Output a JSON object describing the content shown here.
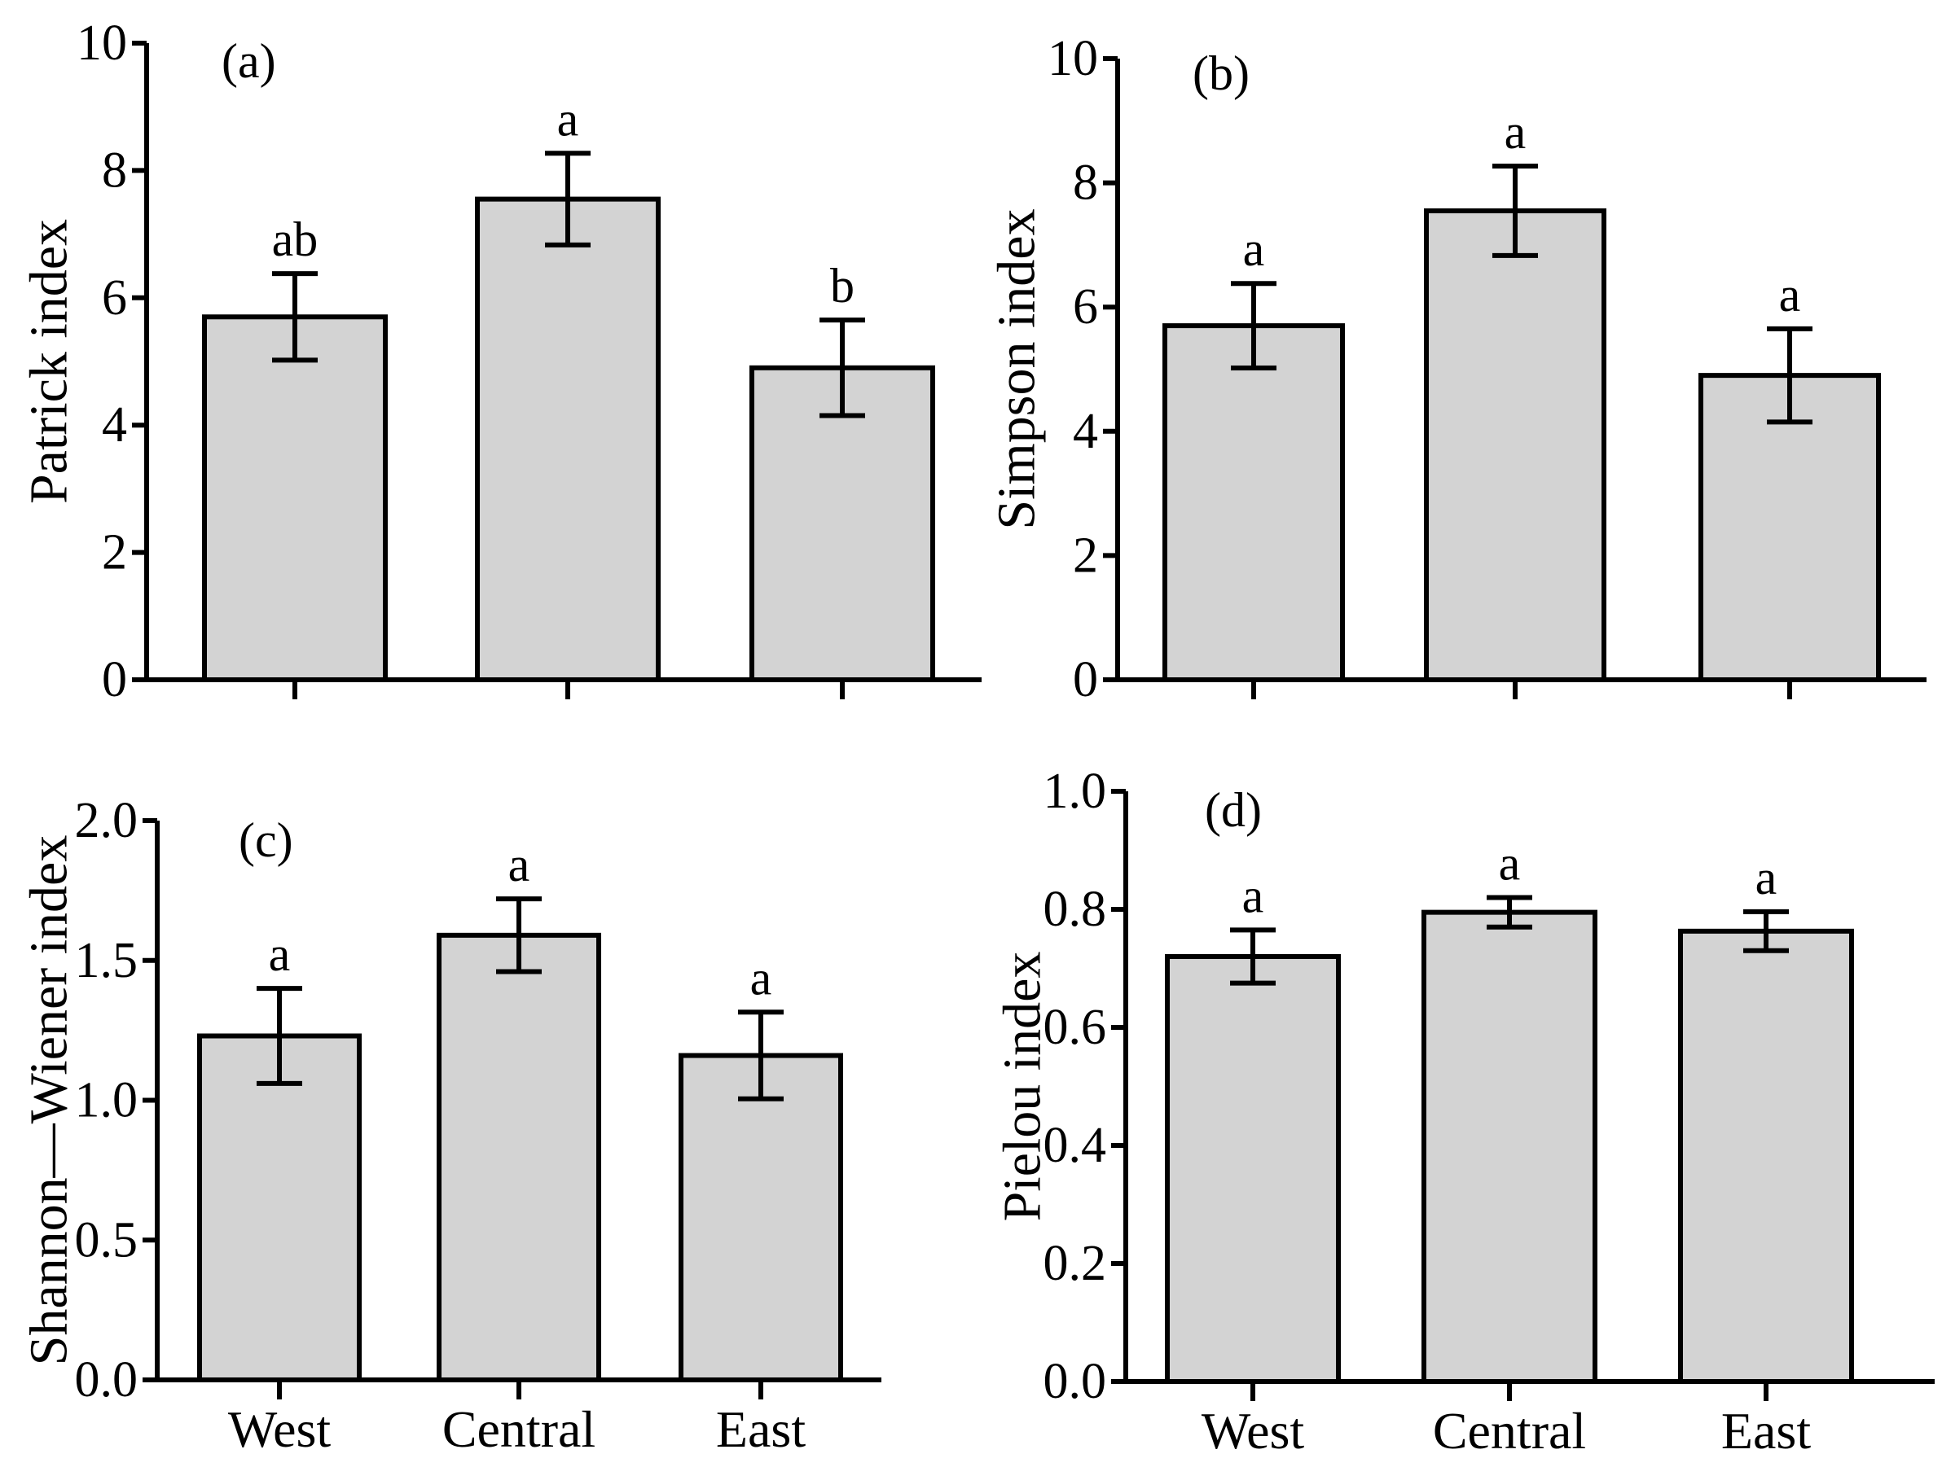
{
  "chart_data": [
    {
      "type": "bar",
      "panel_label": "(a)",
      "ylabel": "Patrick index",
      "categories": [
        "West",
        "Central",
        "East"
      ],
      "show_category_labels": false,
      "values": [
        5.7,
        7.55,
        4.9
      ],
      "errors": [
        0.68,
        0.72,
        0.75
      ],
      "significance": [
        "ab",
        "a",
        "b"
      ],
      "ylim": [
        0,
        10
      ],
      "yticks": [
        0,
        2,
        4,
        6,
        8,
        10
      ],
      "ytick_labels": [
        "0",
        "2",
        "4",
        "6",
        "8",
        "10"
      ],
      "bar_color": "#d3d3d3",
      "edge_color": "#000000",
      "grid": false
    },
    {
      "type": "bar",
      "panel_label": "(b)",
      "ylabel": "Simpson index",
      "categories": [
        "West",
        "Central",
        "East"
      ],
      "show_category_labels": false,
      "values": [
        5.7,
        7.55,
        4.9
      ],
      "errors": [
        0.68,
        0.72,
        0.75
      ],
      "significance": [
        "a",
        "a",
        "a"
      ],
      "ylim": [
        0,
        10
      ],
      "yticks": [
        0,
        2,
        4,
        6,
        8,
        10
      ],
      "ytick_labels": [
        "0",
        "2",
        "4",
        "6",
        "8",
        "10"
      ],
      "bar_color": "#d3d3d3",
      "edge_color": "#000000",
      "grid": false
    },
    {
      "type": "bar",
      "panel_label": "(c)",
      "ylabel": "Shannon—Wiener index",
      "categories": [
        "West",
        "Central",
        "East"
      ],
      "show_category_labels": true,
      "values": [
        1.23,
        1.59,
        1.16
      ],
      "errors": [
        0.17,
        0.13,
        0.155
      ],
      "significance": [
        "a",
        "a",
        "a"
      ],
      "ylim": [
        0,
        2
      ],
      "yticks": [
        0,
        0.5,
        1,
        1.5,
        2
      ],
      "ytick_labels": [
        "0.0",
        "0.5",
        "1.0",
        "1.5",
        "2.0"
      ],
      "bar_color": "#d3d3d3",
      "edge_color": "#000000",
      "grid": false
    },
    {
      "type": "bar",
      "panel_label": "(d)",
      "ylabel": "Pielou index",
      "categories": [
        "West",
        "Central",
        "East"
      ],
      "show_category_labels": true,
      "values": [
        0.72,
        0.795,
        0.763
      ],
      "errors": [
        0.045,
        0.025,
        0.033
      ],
      "significance": [
        "a",
        "a",
        "a"
      ],
      "ylim": [
        0,
        1
      ],
      "yticks": [
        0,
        0.2,
        0.4,
        0.6,
        0.8,
        1
      ],
      "ytick_labels": [
        "0.0",
        "0.2",
        "0.4",
        "0.6",
        "0.8",
        "1.0"
      ],
      "bar_color": "#d3d3d3",
      "edge_color": "#000000",
      "grid": false
    }
  ]
}
